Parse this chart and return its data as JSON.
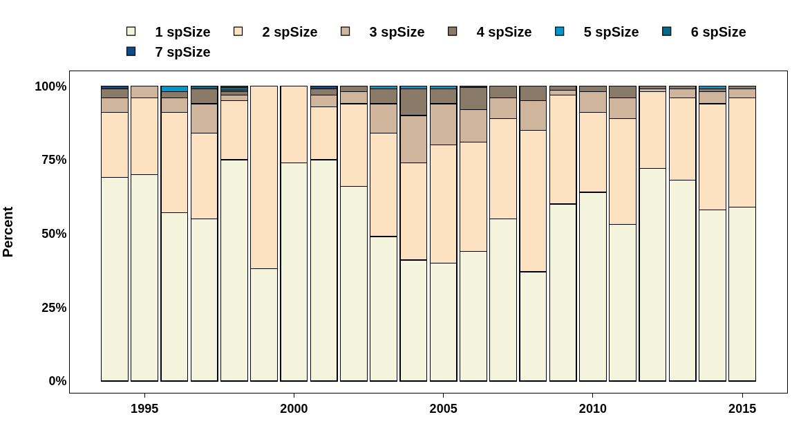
{
  "chart_data": {
    "type": "bar",
    "stacked": true,
    "ylabel": "Percent",
    "legend": "top",
    "x": [
      1994,
      1995,
      1996,
      1997,
      1998,
      1999,
      2000,
      2001,
      2002,
      2003,
      2004,
      2005,
      2006,
      2007,
      2008,
      2009,
      2010,
      2011,
      2012,
      2013,
      2014,
      2015
    ],
    "series": [
      {
        "name": "1 spSize",
        "color": "#f4f4dc",
        "values": [
          69,
          70,
          57,
          55,
          75,
          38,
          74,
          75,
          66,
          49,
          41,
          40,
          44,
          55,
          37,
          60,
          64,
          53,
          72,
          68,
          58,
          59
        ]
      },
      {
        "name": "2 spSize",
        "color": "#fde2c2",
        "values": [
          22,
          26,
          34,
          29,
          20,
          62,
          26,
          18,
          28,
          35,
          33,
          40,
          37,
          34,
          48,
          37,
          27,
          36,
          26,
          28,
          36,
          37
        ]
      },
      {
        "name": "3 spSize",
        "color": "#cfb59b",
        "values": [
          5,
          4,
          5,
          10,
          2,
          null,
          null,
          4,
          4,
          10,
          16,
          14,
          11,
          7,
          10,
          1.5,
          7,
          7,
          1,
          3,
          4,
          3
        ]
      },
      {
        "name": "4 spSize",
        "color": "#8a7b68",
        "values": [
          3,
          null,
          2,
          5,
          1,
          null,
          null,
          2,
          2,
          5,
          9,
          5,
          7.5,
          4,
          5,
          1.5,
          2,
          4,
          1,
          1,
          1,
          1
        ]
      },
      {
        "name": "5 spSize",
        "color": "#0098cc",
        "values": [
          null,
          null,
          2,
          null,
          0.5,
          null,
          null,
          null,
          null,
          1,
          1,
          1,
          null,
          null,
          null,
          null,
          null,
          null,
          null,
          null,
          1,
          null
        ]
      },
      {
        "name": "6 spSize",
        "color": "#006a8a",
        "values": [
          null,
          null,
          null,
          1,
          1,
          null,
          null,
          null,
          null,
          null,
          null,
          null,
          null,
          null,
          null,
          null,
          null,
          null,
          null,
          null,
          null,
          null
        ]
      },
      {
        "name": "7 spSize",
        "color": "#0f4b8a",
        "values": [
          1,
          null,
          null,
          null,
          0.5,
          null,
          null,
          1,
          null,
          null,
          null,
          null,
          0.5,
          null,
          null,
          null,
          null,
          null,
          null,
          null,
          null,
          null
        ]
      }
    ],
    "xlim": [
      1992.5,
      2016.5
    ],
    "xticks": [
      1995,
      2000,
      2005,
      2010,
      2015
    ],
    "ylim": [
      -4,
      105
    ],
    "yticks": [
      {
        "value": 0,
        "label": "0%"
      },
      {
        "value": 25,
        "label": "25%"
      },
      {
        "value": 50,
        "label": "50%"
      },
      {
        "value": 75,
        "label": "75%"
      },
      {
        "value": 100,
        "label": "100%"
      }
    ],
    "grid": false
  }
}
